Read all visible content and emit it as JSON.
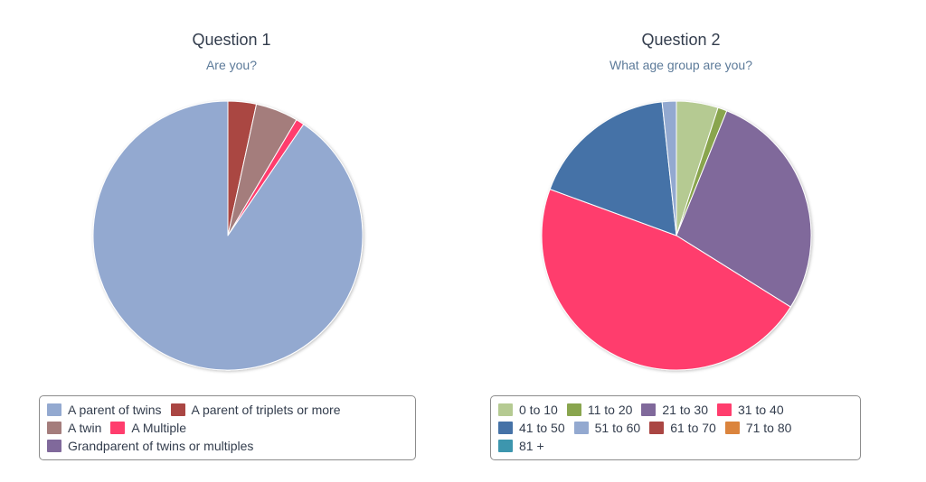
{
  "chart_data": [
    {
      "type": "pie",
      "title": "Question 1",
      "subtitle": "Are you?",
      "legend_position": "bottom",
      "slices": [
        {
          "label": "A parent of twins",
          "value": 90.5,
          "color": "#93a9d0"
        },
        {
          "label": "A parent of triplets or more",
          "value": 3.4,
          "color": "#aa4643"
        },
        {
          "label": "A twin",
          "value": 5.1,
          "color": "#a47d7c"
        },
        {
          "label": "A Multiple",
          "value": 1.0,
          "color": "#ff3d6d"
        },
        {
          "label": "Grandparent of twins or multiples",
          "value": 0,
          "color": "#80699b"
        }
      ],
      "slice_order": [
        1,
        2,
        3,
        0
      ],
      "legend_rows": [
        [
          0,
          1
        ],
        [
          2,
          3
        ],
        [
          4
        ]
      ]
    },
    {
      "type": "pie",
      "title": "Question 2",
      "subtitle": "What age group are you?",
      "legend_position": "bottom",
      "slices": [
        {
          "label": "0 to 10",
          "value": 5.0,
          "color": "#b5ca92"
        },
        {
          "label": "11 to 20",
          "value": 1.1,
          "color": "#89a54e"
        },
        {
          "label": "21 to 30",
          "value": 27.8,
          "color": "#80699b"
        },
        {
          "label": "31 to 40",
          "value": 46.7,
          "color": "#ff3d6d"
        },
        {
          "label": "41 to 50",
          "value": 17.7,
          "color": "#4572a7"
        },
        {
          "label": "51 to 60",
          "value": 1.7,
          "color": "#93a9d0"
        },
        {
          "label": "61 to 70",
          "value": 0,
          "color": "#aa4643"
        },
        {
          "label": "71 to 80",
          "value": 0,
          "color": "#db843d"
        },
        {
          "label": "81 +",
          "value": 0,
          "color": "#3d96ae"
        }
      ],
      "slice_order": [
        0,
        1,
        2,
        3,
        4,
        5
      ],
      "legend_rows": [
        [
          0,
          1,
          2,
          3
        ],
        [
          4,
          5,
          6,
          7
        ],
        [
          8
        ]
      ]
    }
  ]
}
